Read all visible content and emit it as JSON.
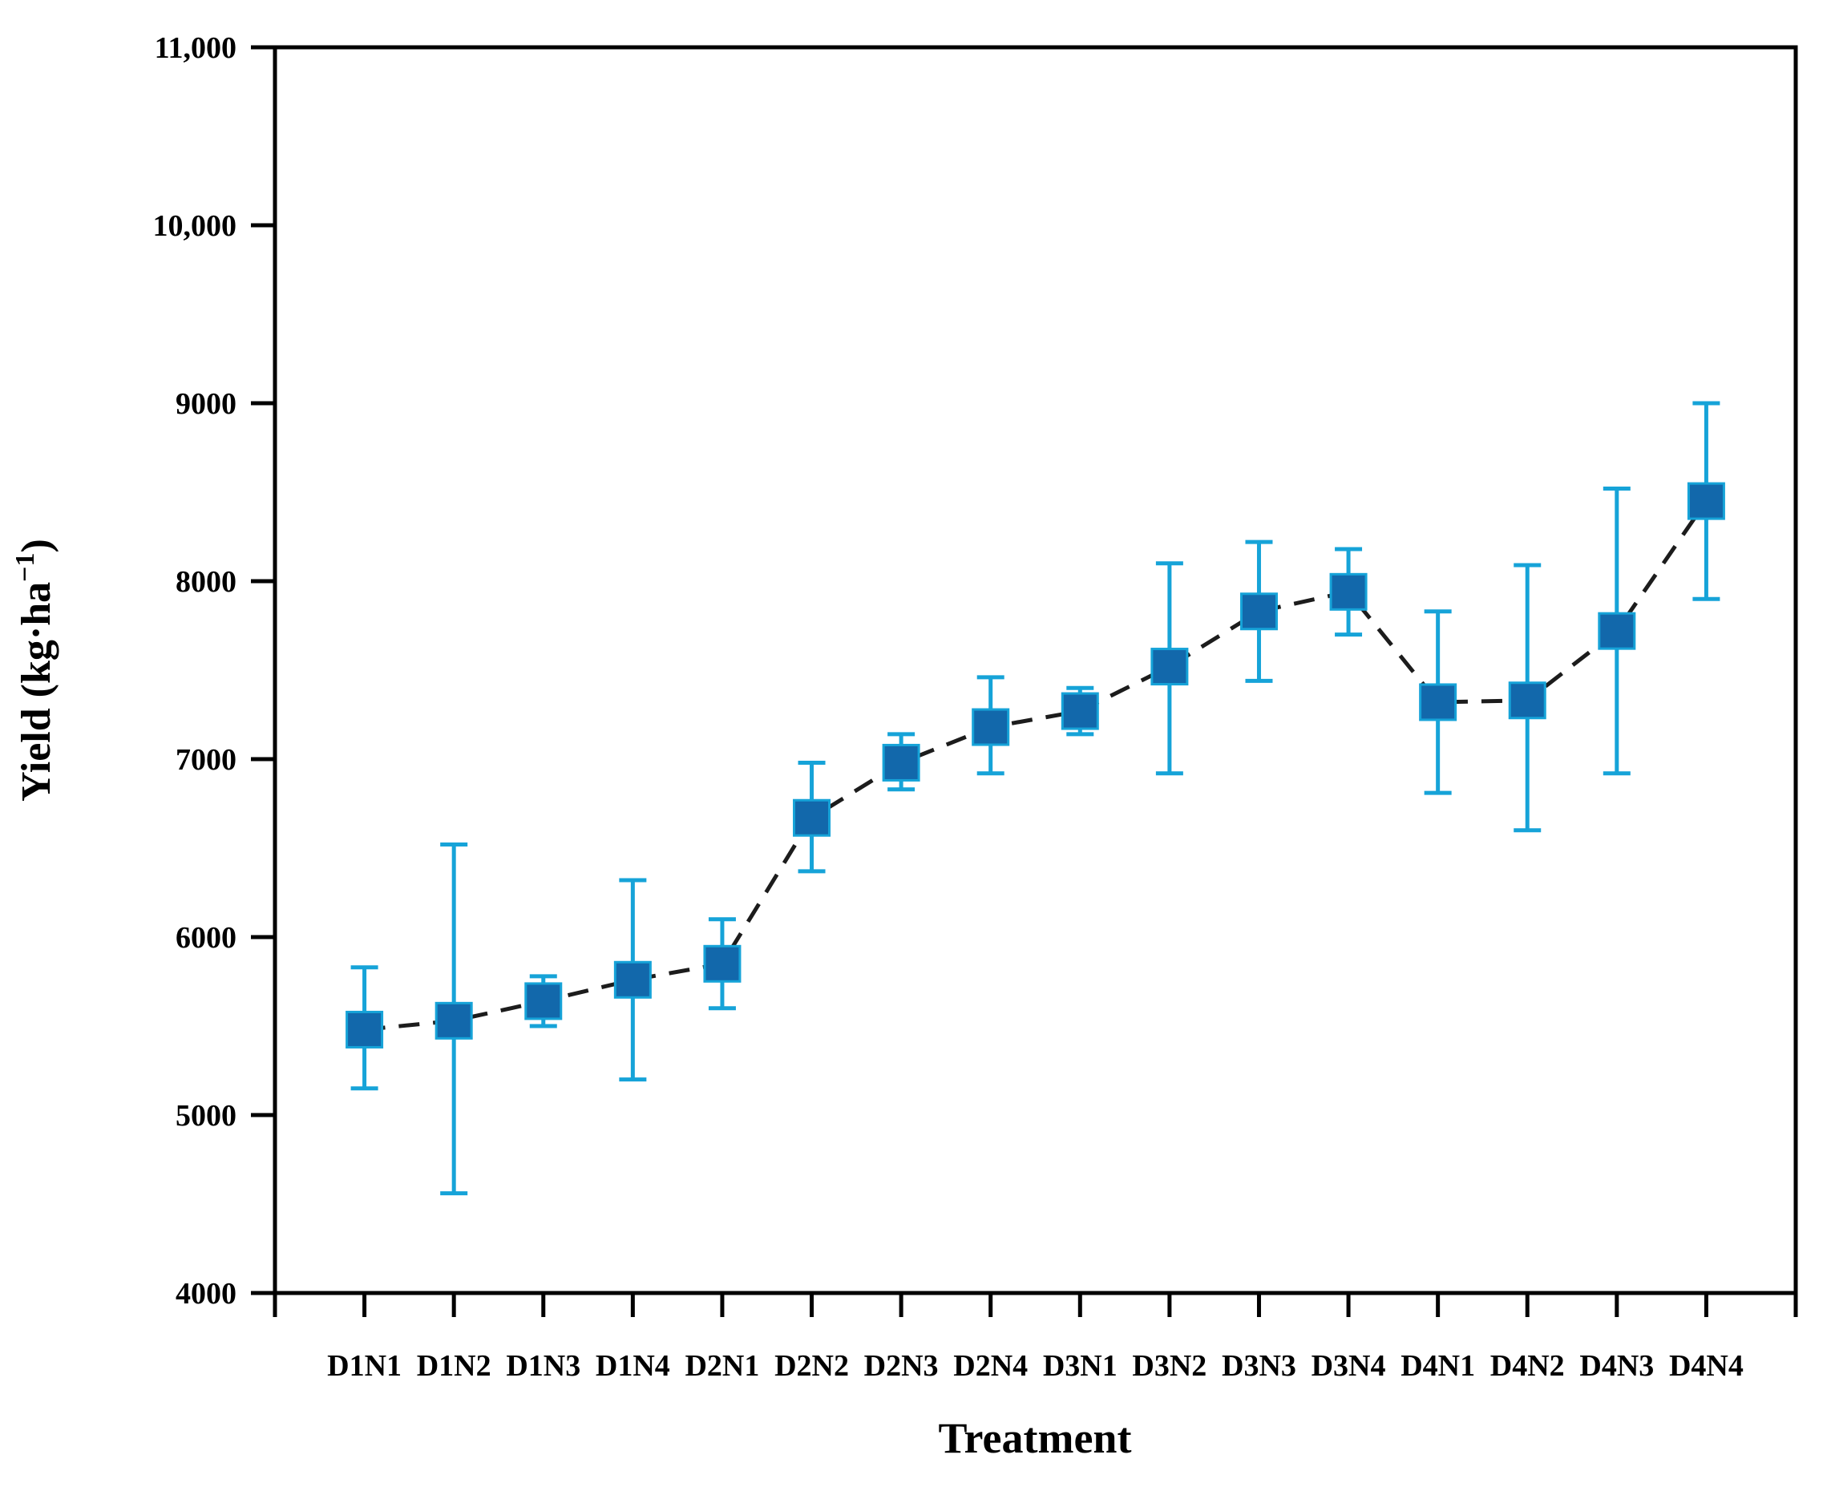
{
  "figure": {
    "background": "#ffffff"
  },
  "chart_data": {
    "type": "scatter",
    "subtype": "point-errorbar-dashed-line",
    "title": "",
    "xlabel": "Treatment",
    "ylabel": "Yield (kg·ha⁻¹)",
    "ylabel_parts": {
      "main": "Yield (kg·ha",
      "superscript": "−1",
      "close": ")"
    },
    "ylim": [
      4000,
      11000
    ],
    "ytick_step": 1000,
    "grid": false,
    "legend": "none",
    "yticks": [
      {
        "v": 4000,
        "label": "4000"
      },
      {
        "v": 5000,
        "label": "5000"
      },
      {
        "v": 6000,
        "label": "6000"
      },
      {
        "v": 7000,
        "label": "7000"
      },
      {
        "v": 8000,
        "label": "8000"
      },
      {
        "v": 9000,
        "label": "9000"
      },
      {
        "v": 10000,
        "label": "10,000"
      },
      {
        "v": 11000,
        "label": "11,000"
      }
    ],
    "categories": [
      "D1N1",
      "D1N2",
      "D1N3",
      "D1N4",
      "D2N1",
      "D2N2",
      "D2N3",
      "D2N4",
      "D3N1",
      "D3N2",
      "D3N3",
      "D3N4",
      "D4N1",
      "D4N2",
      "D4N3",
      "D4N4"
    ],
    "points": [
      {
        "label": "D1N1",
        "y": 5480,
        "lo": 5150,
        "hi": 5830
      },
      {
        "label": "D1N2",
        "y": 5530,
        "lo": 4560,
        "hi": 6520
      },
      {
        "label": "D1N3",
        "y": 5640,
        "lo": 5500,
        "hi": 5780
      },
      {
        "label": "D1N4",
        "y": 5760,
        "lo": 5200,
        "hi": 6320
      },
      {
        "label": "D2N1",
        "y": 5850,
        "lo": 5600,
        "hi": 6100
      },
      {
        "label": "D2N2",
        "y": 6670,
        "lo": 6370,
        "hi": 6980
      },
      {
        "label": "D2N3",
        "y": 6980,
        "lo": 6830,
        "hi": 7140
      },
      {
        "label": "D2N4",
        "y": 7180,
        "lo": 6920,
        "hi": 7460
      },
      {
        "label": "D3N1",
        "y": 7270,
        "lo": 7140,
        "hi": 7400
      },
      {
        "label": "D3N2",
        "y": 7520,
        "lo": 6920,
        "hi": 8100
      },
      {
        "label": "D3N3",
        "y": 7830,
        "lo": 7440,
        "hi": 8220
      },
      {
        "label": "D3N4",
        "y": 7940,
        "lo": 7700,
        "hi": 8180
      },
      {
        "label": "D4N1",
        "y": 7320,
        "lo": 6810,
        "hi": 7830
      },
      {
        "label": "D4N2",
        "y": 7330,
        "lo": 6600,
        "hi": 8090
      },
      {
        "label": "D4N3",
        "y": 7720,
        "lo": 6920,
        "hi": 8520
      },
      {
        "label": "D4N4",
        "y": 8450,
        "lo": 7900,
        "hi": 9000
      }
    ],
    "colors": {
      "marker_fill": "#1268ab",
      "marker_edge": "#16a3d8",
      "error_bar": "#16a3d8",
      "trend_line": "#1c1c1c",
      "axis": "#000000",
      "background": "#ffffff"
    },
    "line_style": "dashed"
  }
}
